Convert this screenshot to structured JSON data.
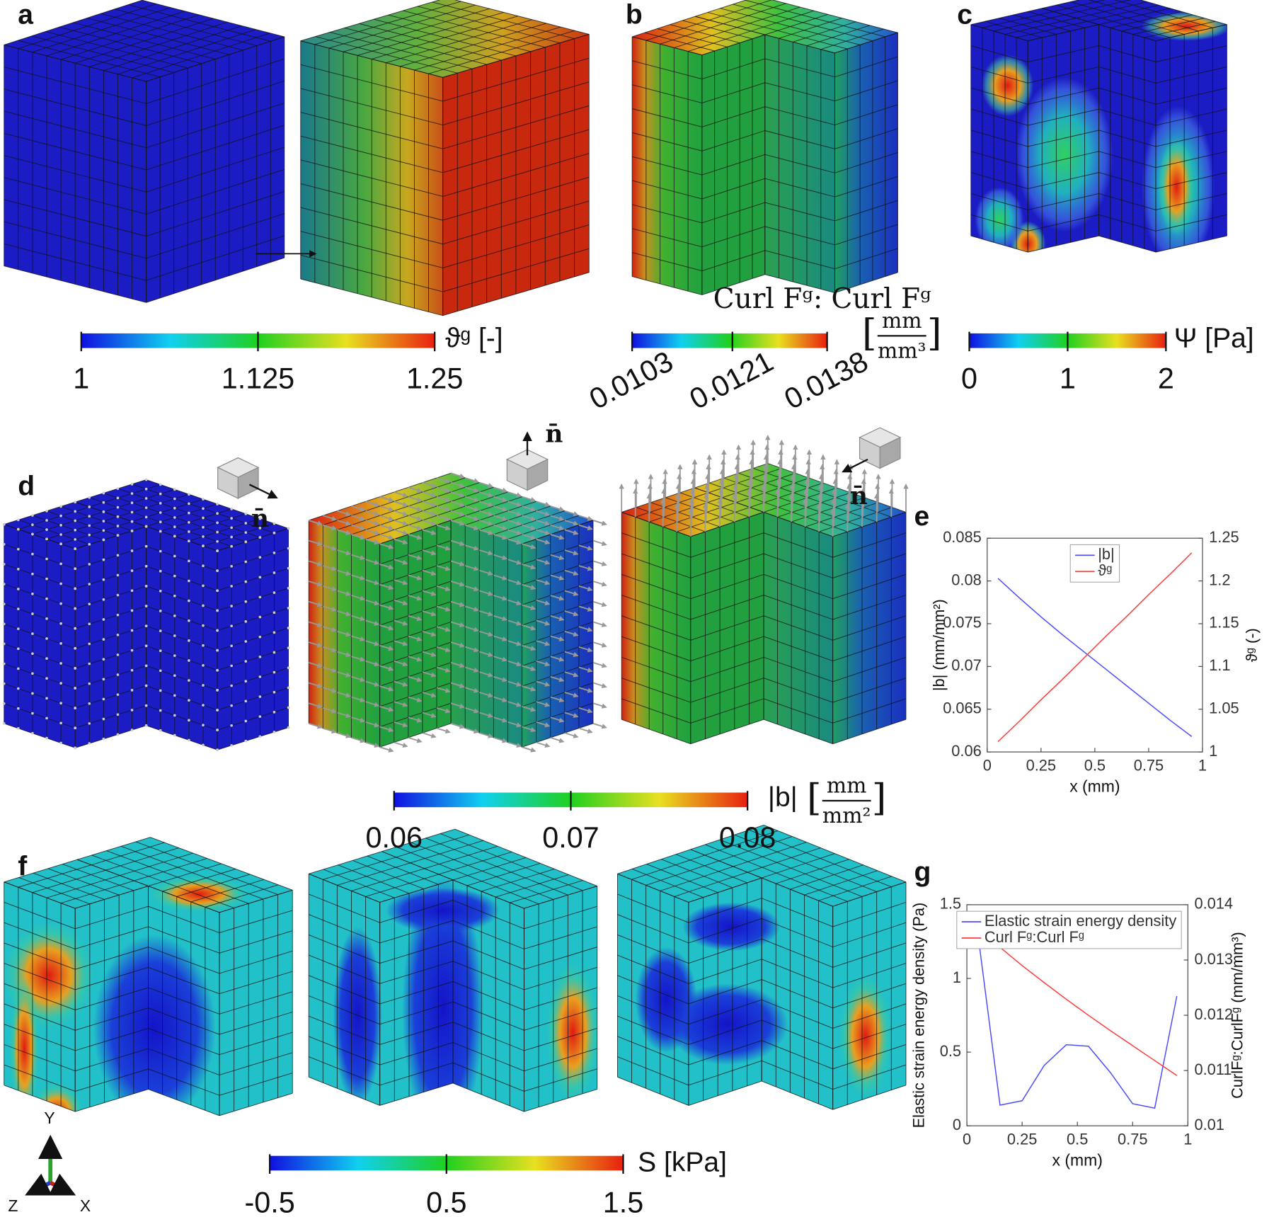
{
  "panel_labels": [
    "a",
    "b",
    "c",
    "d",
    "e",
    "f",
    "g"
  ],
  "normal_labels": [
    "n̄",
    "n̄",
    "n̄"
  ],
  "axis_triad": [
    "Y",
    "Z",
    "X"
  ],
  "colorbars": [
    {
      "label": "ϑᵍ [-]",
      "lim": [
        1,
        1.25
      ],
      "ticks": [
        1,
        1.125,
        1.25
      ]
    },
    {
      "label": "Curl Fᵍ: Curl Fᵍ",
      "bracket_open": "[",
      "unit_numerator": "mm",
      "unit_denominator": "mm³",
      "bracket_close": "]",
      "lim": [
        0.0103,
        0.0138
      ],
      "ticks": [
        0.0103,
        0.0121,
        0.0138
      ]
    },
    {
      "label": "Ψ [Pa]",
      "lim": [
        0,
        2
      ],
      "ticks": [
        0,
        1,
        2
      ]
    },
    {
      "label": "|b|",
      "bracket_open": "[",
      "unit_numerator": "mm",
      "unit_denominator": "mm²",
      "bracket_close": "]",
      "lim": [
        0.06,
        0.08
      ],
      "ticks": [
        0.06,
        0.07,
        0.08
      ]
    },
    {
      "label": "S [kPa]",
      "lim": [
        -0.5,
        1.5
      ],
      "ticks": [
        -0.5,
        0.5,
        1.5
      ]
    }
  ],
  "chart_data": [
    {
      "type": "line",
      "x": [
        0.05,
        0.15,
        0.25,
        0.35,
        0.45,
        0.55,
        0.65,
        0.75,
        0.85,
        0.95
      ],
      "series": [
        {
          "name": "|b|",
          "color": "#4d4dff",
          "values": [
            0.0803,
            0.078,
            0.0758,
            0.0737,
            0.0717,
            0.0697,
            0.0677,
            0.0657,
            0.0637,
            0.0618
          ]
        },
        {
          "name": "ϑᵍ",
          "color": "#ff3b3b",
          "axis": "y2",
          "values": [
            1.012,
            1.036,
            1.061,
            1.085,
            1.11,
            1.135,
            1.159,
            1.184,
            1.208,
            1.233
          ]
        }
      ],
      "xlim": [
        0,
        1
      ],
      "xticks": [
        0,
        0.25,
        0.5,
        0.75,
        1
      ],
      "ylim": [
        0.06,
        0.085
      ],
      "yticks": [
        0.06,
        0.065,
        0.07,
        0.075,
        0.08,
        0.085
      ],
      "y2lim": [
        1,
        1.25
      ],
      "y2ticks": [
        1,
        1.05,
        1.1,
        1.15,
        1.2,
        1.25
      ],
      "x_label": "x (mm)",
      "y_label": "|b| (mm/mm²)",
      "y2_label": "ϑᵍ (-)",
      "legend": "upper center"
    },
    {
      "type": "line",
      "x": [
        0.05,
        0.15,
        0.25,
        0.35,
        0.45,
        0.55,
        0.65,
        0.75,
        0.85,
        0.95
      ],
      "series": [
        {
          "name": "Elastic strain energy density",
          "color": "#4d4dff",
          "values": [
            1.3,
            0.14,
            0.17,
            0.41,
            0.55,
            0.54,
            0.36,
            0.15,
            0.12,
            0.88
          ]
        },
        {
          "name": "Curl Fᵍ:Curl Fᵍ",
          "color": "#ff3b3b",
          "axis": "y2",
          "values": [
            0.01357,
            0.01323,
            0.0129,
            0.01259,
            0.01229,
            0.012,
            0.01172,
            0.01145,
            0.01118,
            0.01091
          ]
        }
      ],
      "xlim": [
        0,
        1
      ],
      "xticks": [
        0,
        0.25,
        0.5,
        0.75,
        1
      ],
      "ylim": [
        0,
        1.5
      ],
      "yticks": [
        0,
        0.5,
        1,
        1.5
      ],
      "y2lim": [
        0.01,
        0.014
      ],
      "y2ticks": [
        0.01,
        0.011,
        0.012,
        0.013,
        0.014
      ],
      "x_label": "x (mm)",
      "y_label": "Elastic strain energy density (Pa)",
      "y2_label": "CurlFᵍ:CurlFᵍ (mm/mm³)",
      "legend": "upper right"
    }
  ]
}
